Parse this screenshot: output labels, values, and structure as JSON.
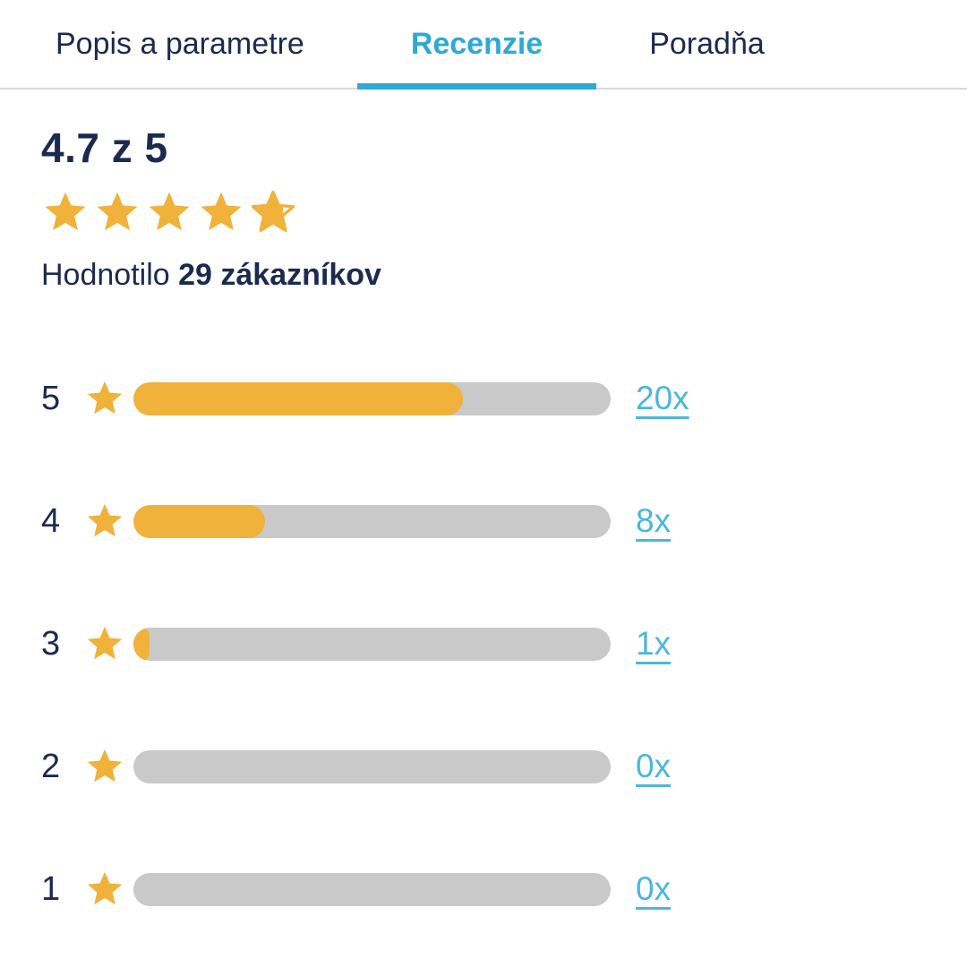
{
  "tabs": [
    {
      "label": "Popis a parametre",
      "active": false
    },
    {
      "label": "Recenzie",
      "active": true
    },
    {
      "label": "Poradňa",
      "active": false
    }
  ],
  "summary": {
    "score_text": "4.7 z 5",
    "rating_value": 4.7,
    "rating_max": 5,
    "stars_full": 4,
    "star_partial_pct": 70,
    "rated_prefix": "Hodnotilo ",
    "rated_bold": "29 zákazníkov",
    "review_count": 29
  },
  "distribution": {
    "total_reviews": 29,
    "rows": [
      {
        "stars": "5",
        "count": 20,
        "count_label": "20x",
        "fill_pct": 69
      },
      {
        "stars": "4",
        "count": 8,
        "count_label": "8x",
        "fill_pct": 27.6
      },
      {
        "stars": "3",
        "count": 1,
        "count_label": "1x",
        "fill_pct": 3.4
      },
      {
        "stars": "2",
        "count": 0,
        "count_label": "0x",
        "fill_pct": 0
      },
      {
        "stars": "1",
        "count": 0,
        "count_label": "0x",
        "fill_pct": 0
      }
    ]
  },
  "colors": {
    "navy_text": "#1C2A50",
    "active_tab_teal": "#2FA9D2",
    "link_teal": "#4CB7DA",
    "star_amber": "#F0B23B",
    "bar_gray": "#C9C9C9",
    "divider_gray": "#DADADA"
  }
}
